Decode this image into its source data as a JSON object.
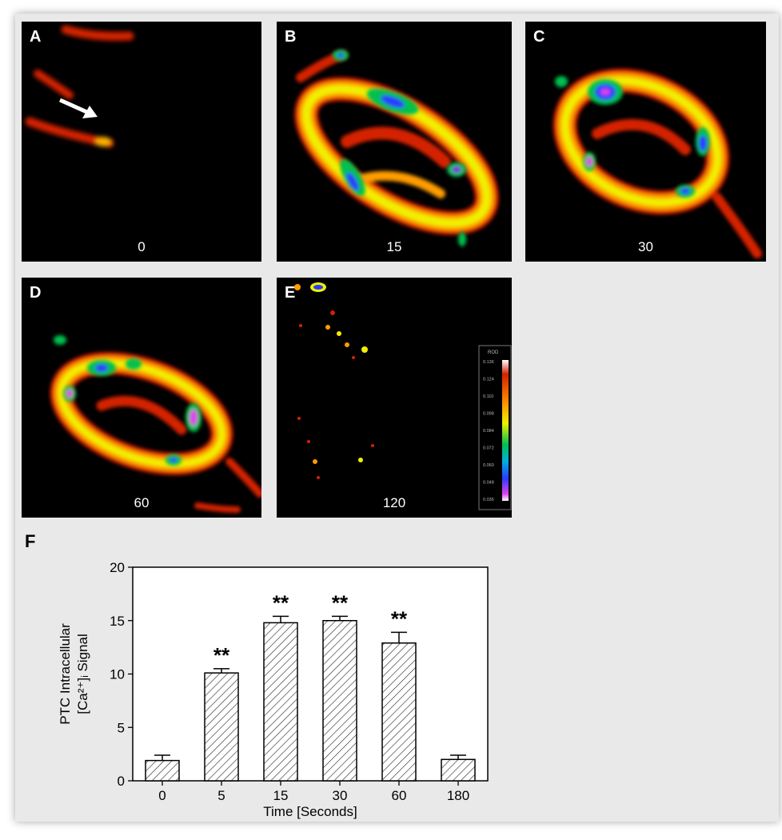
{
  "panels": [
    {
      "label": "A",
      "time": "0"
    },
    {
      "label": "B",
      "time": "15"
    },
    {
      "label": "C",
      "time": "30"
    },
    {
      "label": "D",
      "time": "60"
    },
    {
      "label": "E",
      "time": "120"
    }
  ],
  "colorbar": {
    "title": "ROD",
    "ticks": [
      "0.136",
      "0.124",
      "0.110",
      "0.098",
      "0.084",
      "0.072",
      "0.060",
      "0.048",
      "0.036"
    ]
  },
  "panel_f_label": "F",
  "chart_data": {
    "type": "bar",
    "categories": [
      "0",
      "5",
      "15",
      "30",
      "60",
      "180"
    ],
    "values": [
      1.9,
      10.1,
      14.8,
      15.0,
      12.9,
      2.0
    ],
    "errors": [
      0.5,
      0.4,
      0.6,
      0.4,
      1.0,
      0.4
    ],
    "annotations": [
      "",
      "**",
      "**",
      "**",
      "**",
      ""
    ],
    "xlabel": "Time [Seconds]",
    "ylabel_line1": "PTC Intracellular",
    "ylabel_line2": "[Ca²⁺]ᵢ Signal",
    "ylim": [
      0,
      20
    ],
    "yticks": [
      0,
      5,
      10,
      15,
      20
    ],
    "bar_pattern": "diagonal-hatch",
    "grid": false
  }
}
